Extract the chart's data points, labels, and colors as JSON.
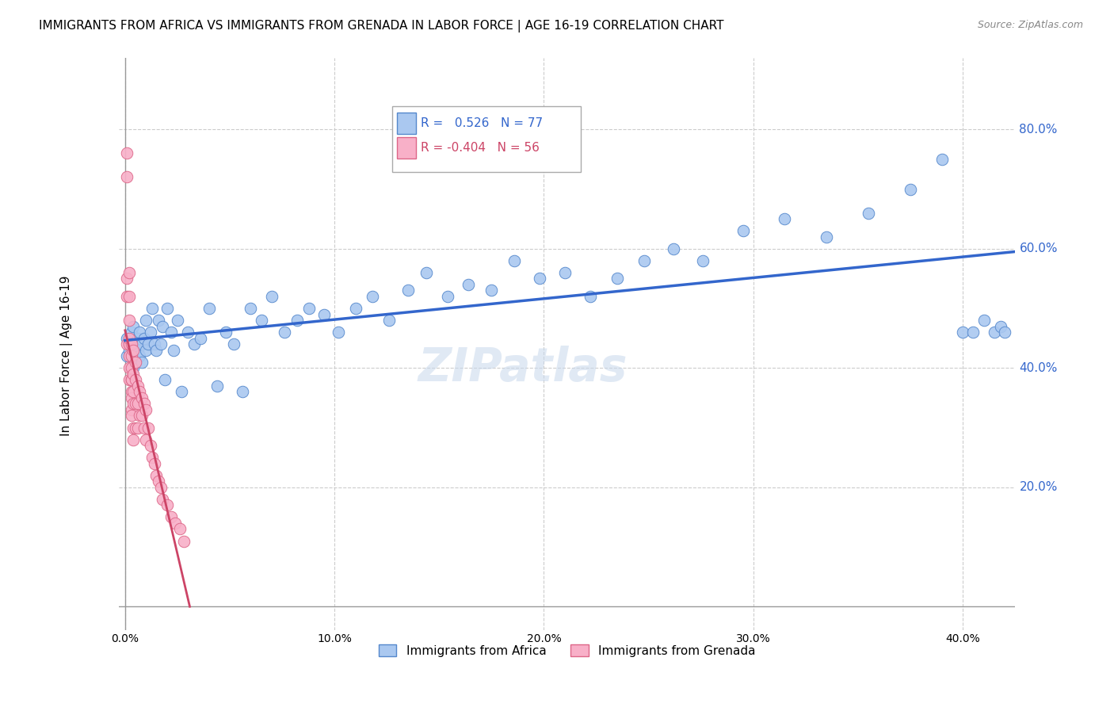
{
  "title": "IMMIGRANTS FROM AFRICA VS IMMIGRANTS FROM GRENADA IN LABOR FORCE | AGE 16-19 CORRELATION CHART",
  "source": "Source: ZipAtlas.com",
  "ylabel": "In Labor Force | Age 16-19",
  "x_tick_labels": [
    "0.0%",
    "10.0%",
    "20.0%",
    "30.0%",
    "40.0%"
  ],
  "y_tick_labels_right": [
    "20.0%",
    "40.0%",
    "60.0%",
    "80.0%"
  ],
  "xlim": [
    -0.003,
    0.425
  ],
  "ylim": [
    -0.04,
    0.92
  ],
  "africa_color": "#aac8f0",
  "africa_edge": "#5588cc",
  "grenada_color": "#f8b0c8",
  "grenada_edge": "#dd6688",
  "africa_line_color": "#3366cc",
  "grenada_line_color": "#cc4466",
  "R_africa": 0.526,
  "N_africa": 77,
  "R_grenada": -0.404,
  "N_grenada": 56,
  "africa_scatter_x": [
    0.001,
    0.001,
    0.002,
    0.002,
    0.003,
    0.003,
    0.004,
    0.004,
    0.005,
    0.005,
    0.006,
    0.006,
    0.007,
    0.007,
    0.008,
    0.008,
    0.009,
    0.01,
    0.01,
    0.011,
    0.012,
    0.013,
    0.014,
    0.015,
    0.016,
    0.017,
    0.018,
    0.019,
    0.02,
    0.022,
    0.023,
    0.025,
    0.027,
    0.03,
    0.033,
    0.036,
    0.04,
    0.044,
    0.048,
    0.052,
    0.056,
    0.06,
    0.065,
    0.07,
    0.076,
    0.082,
    0.088,
    0.095,
    0.102,
    0.11,
    0.118,
    0.126,
    0.135,
    0.144,
    0.154,
    0.164,
    0.175,
    0.186,
    0.198,
    0.21,
    0.222,
    0.235,
    0.248,
    0.262,
    0.276,
    0.295,
    0.315,
    0.335,
    0.355,
    0.375,
    0.39,
    0.4,
    0.405,
    0.41,
    0.415,
    0.418,
    0.42
  ],
  "africa_scatter_y": [
    0.42,
    0.45,
    0.44,
    0.43,
    0.46,
    0.42,
    0.4,
    0.47,
    0.41,
    0.44,
    0.43,
    0.45,
    0.42,
    0.46,
    0.41,
    0.44,
    0.45,
    0.43,
    0.48,
    0.44,
    0.46,
    0.5,
    0.44,
    0.43,
    0.48,
    0.44,
    0.47,
    0.38,
    0.5,
    0.46,
    0.43,
    0.48,
    0.36,
    0.46,
    0.44,
    0.45,
    0.5,
    0.37,
    0.46,
    0.44,
    0.36,
    0.5,
    0.48,
    0.52,
    0.46,
    0.48,
    0.5,
    0.49,
    0.46,
    0.5,
    0.52,
    0.48,
    0.53,
    0.56,
    0.52,
    0.54,
    0.53,
    0.58,
    0.55,
    0.56,
    0.52,
    0.55,
    0.58,
    0.6,
    0.58,
    0.63,
    0.65,
    0.62,
    0.66,
    0.7,
    0.75,
    0.46,
    0.46,
    0.48,
    0.46,
    0.47,
    0.46
  ],
  "grenada_scatter_x": [
    0.001,
    0.001,
    0.001,
    0.001,
    0.001,
    0.002,
    0.002,
    0.002,
    0.002,
    0.002,
    0.002,
    0.002,
    0.002,
    0.003,
    0.003,
    0.003,
    0.003,
    0.003,
    0.003,
    0.003,
    0.003,
    0.003,
    0.004,
    0.004,
    0.004,
    0.004,
    0.004,
    0.004,
    0.005,
    0.005,
    0.005,
    0.005,
    0.006,
    0.006,
    0.006,
    0.007,
    0.007,
    0.008,
    0.008,
    0.009,
    0.009,
    0.01,
    0.01,
    0.011,
    0.012,
    0.013,
    0.014,
    0.015,
    0.016,
    0.017,
    0.018,
    0.02,
    0.022,
    0.024,
    0.026,
    0.028
  ],
  "grenada_scatter_y": [
    0.76,
    0.72,
    0.55,
    0.52,
    0.44,
    0.56,
    0.52,
    0.44,
    0.4,
    0.38,
    0.42,
    0.45,
    0.48,
    0.44,
    0.4,
    0.38,
    0.42,
    0.36,
    0.35,
    0.33,
    0.38,
    0.32,
    0.43,
    0.39,
    0.36,
    0.34,
    0.3,
    0.28,
    0.41,
    0.38,
    0.34,
    0.3,
    0.37,
    0.34,
    0.3,
    0.36,
    0.32,
    0.35,
    0.32,
    0.34,
    0.3,
    0.33,
    0.28,
    0.3,
    0.27,
    0.25,
    0.24,
    0.22,
    0.21,
    0.2,
    0.18,
    0.17,
    0.15,
    0.14,
    0.13,
    0.11
  ],
  "watermark": "ZIPatlas",
  "background_color": "#ffffff",
  "grid_color": "#cccccc"
}
